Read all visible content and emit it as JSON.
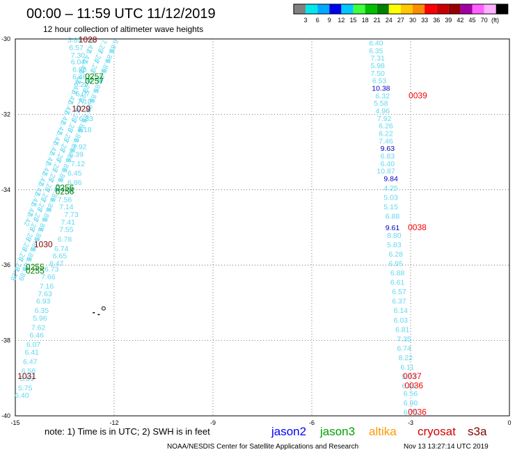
{
  "header": {
    "title": "00:00 – 11:59 UTC 11/12/2019",
    "subtitle": "12 hour collection of altimeter wave heights"
  },
  "footer": {
    "note": "note: 1) Time is in UTC; 2) SWH is in feet",
    "credit": "NOAA/NESDIS Center for Satellite Applications and Research",
    "timestamp": "Nov 13 13:27:14 UTC 2019"
  },
  "legend": {
    "unit": "(ft)",
    "colors": [
      "#808080",
      "#00e8e8",
      "#00a8ff",
      "#0000e8",
      "#00c8ff",
      "#40ff40",
      "#00c000",
      "#008000",
      "#ffff00",
      "#ffc800",
      "#ff8c00",
      "#ff0000",
      "#c80000",
      "#960000",
      "#a000a0",
      "#ff60ff",
      "#ffb0ff",
      "#000000"
    ],
    "labels": [
      "3",
      "6",
      "9",
      "12",
      "15",
      "18",
      "21",
      "24",
      "27",
      "30",
      "33",
      "36",
      "39",
      "42",
      "45",
      "70"
    ],
    "satellites": [
      {
        "name": "jason2",
        "color": "#0000ff"
      },
      {
        "name": "jason3",
        "color": "#00a000"
      },
      {
        "name": "altika",
        "color": "#ff9900"
      },
      {
        "name": "cryosat",
        "color": "#d40000"
      },
      {
        "name": "s3a",
        "color": "#800000"
      }
    ]
  },
  "chart_data": {
    "type": "scatter",
    "xlim": [
      -15,
      0
    ],
    "ylim": [
      -40,
      -30
    ],
    "x_ticks": [
      "-15",
      "-12",
      "-9",
      "-6",
      "-3",
      "0"
    ],
    "y_ticks": [
      "-30",
      "-32",
      "-34",
      "-36",
      "-38",
      "-40"
    ],
    "grid": true,
    "coastline_points": [
      [
        -12.32,
        -37.15
      ],
      [
        -12.65,
        -37.25
      ],
      [
        -12.5,
        -37.3
      ]
    ],
    "series": [
      {
        "name": "track-west-1",
        "color": "#60d8f0",
        "points": [
          {
            "x": -13.2,
            "y": -30.02,
            "v": "5.89"
          },
          {
            "x": -13.15,
            "y": -30.22,
            "v": "6.57"
          },
          {
            "x": -13.1,
            "y": -30.42,
            "v": "7.30"
          },
          {
            "x": -13.1,
            "y": -30.6,
            "v": "6.04"
          },
          {
            "x": -13.05,
            "y": -30.8,
            "v": "6.86"
          },
          {
            "x": -13.05,
            "y": -31.0,
            "v": "6.46"
          },
          {
            "x": -13.0,
            "y": -31.2,
            "v": "6.29"
          },
          {
            "x": -12.95,
            "y": -31.45,
            "v": "6.07"
          },
          {
            "x": -12.9,
            "y": -31.65,
            "v": "7.10"
          },
          {
            "x": -12.85,
            "y": -32.1,
            "v": "6.33"
          },
          {
            "x": -12.9,
            "y": -32.4,
            "v": "7.18"
          },
          {
            "x": -13.05,
            "y": -32.85,
            "v": "7.92"
          },
          {
            "x": -13.15,
            "y": -33.05,
            "v": "6.39"
          },
          {
            "x": -13.1,
            "y": -33.3,
            "v": "7.12"
          },
          {
            "x": -13.2,
            "y": -33.55,
            "v": "6.45"
          },
          {
            "x": -13.2,
            "y": -33.8,
            "v": "6.86"
          },
          {
            "x": -13.4,
            "y": -34.0,
            "v": "7.12"
          },
          {
            "x": -13.5,
            "y": -34.25,
            "v": "7.56"
          },
          {
            "x": -13.45,
            "y": -34.45,
            "v": "7.14"
          },
          {
            "x": -13.3,
            "y": -34.65,
            "v": "7.73"
          },
          {
            "x": -13.4,
            "y": -34.85,
            "v": "7.41"
          },
          {
            "x": -13.45,
            "y": -35.05,
            "v": "7.55"
          },
          {
            "x": -13.5,
            "y": -35.3,
            "v": "6.78"
          },
          {
            "x": -13.6,
            "y": -35.55,
            "v": "6.74"
          },
          {
            "x": -13.65,
            "y": -35.75,
            "v": "6.65"
          },
          {
            "x": -13.75,
            "y": -35.95,
            "v": "8.47"
          },
          {
            "x": -13.9,
            "y": -36.1,
            "v": "6.73"
          },
          {
            "x": -14.0,
            "y": -36.3,
            "v": "7.66"
          },
          {
            "x": -14.05,
            "y": -36.55,
            "v": "7.16"
          },
          {
            "x": -14.1,
            "y": -36.75,
            "v": "7.63"
          },
          {
            "x": -14.15,
            "y": -36.95,
            "v": "6.93"
          },
          {
            "x": -14.2,
            "y": -37.2,
            "v": "6.35"
          },
          {
            "x": -14.25,
            "y": -37.4,
            "v": "5.96"
          },
          {
            "x": -14.3,
            "y": -37.65,
            "v": "7.62"
          },
          {
            "x": -14.35,
            "y": -37.85,
            "v": "6.46"
          },
          {
            "x": -14.45,
            "y": -38.1,
            "v": "6.07"
          },
          {
            "x": -14.5,
            "y": -38.3,
            "v": "6.41"
          },
          {
            "x": -14.55,
            "y": -38.55,
            "v": "6.47"
          },
          {
            "x": -14.6,
            "y": -38.8,
            "v": "6.58"
          },
          {
            "x": -14.65,
            "y": -39.0,
            "v": "5.89"
          },
          {
            "x": -14.7,
            "y": -39.25,
            "v": "5.75"
          },
          {
            "x": -14.8,
            "y": -39.45,
            "v": "6.40"
          }
        ]
      },
      {
        "name": "track-east",
        "color": "#60d8f0",
        "points": [
          {
            "x": -4.05,
            "y": -30.1,
            "v": "6.40"
          },
          {
            "x": -4.05,
            "y": -30.3,
            "v": "6.35"
          },
          {
            "x": -4.0,
            "y": -30.5,
            "v": "7.31"
          },
          {
            "x": -4.0,
            "y": -30.7,
            "v": "5.98"
          },
          {
            "x": -4.0,
            "y": -30.9,
            "v": "7.50"
          },
          {
            "x": -3.95,
            "y": -31.1,
            "v": "6.53"
          },
          {
            "x": -3.9,
            "y": -31.3,
            "v": "10.38",
            "c": "#0000c0"
          },
          {
            "x": -3.85,
            "y": -31.5,
            "v": "6.32"
          },
          {
            "x": -3.9,
            "y": -31.7,
            "v": "5.58"
          },
          {
            "x": -3.85,
            "y": -31.9,
            "v": "4.96"
          },
          {
            "x": -3.8,
            "y": -32.1,
            "v": "7.92"
          },
          {
            "x": -3.75,
            "y": -32.3,
            "v": "6.26"
          },
          {
            "x": -3.75,
            "y": -32.5,
            "v": "6.22"
          },
          {
            "x": -3.75,
            "y": -32.7,
            "v": "7.46"
          },
          {
            "x": -3.7,
            "y": -32.9,
            "v": "9.63",
            "c": "#0000c0"
          },
          {
            "x": -3.7,
            "y": -33.1,
            "v": "6.83"
          },
          {
            "x": -3.7,
            "y": -33.3,
            "v": "6.40"
          },
          {
            "x": -3.75,
            "y": -33.5,
            "v": "10.87",
            "c": "#60d8f0"
          },
          {
            "x": -3.6,
            "y": -33.7,
            "v": "9.84",
            "c": "#0000c0"
          },
          {
            "x": -3.6,
            "y": -33.95,
            "v": "4.25"
          },
          {
            "x": -3.6,
            "y": -34.2,
            "v": "5.03"
          },
          {
            "x": -3.6,
            "y": -34.45,
            "v": "5.15"
          },
          {
            "x": -3.55,
            "y": -34.7,
            "v": "6.88"
          },
          {
            "x": -3.55,
            "y": -35.0,
            "v": "9.61",
            "c": "#0000c0"
          },
          {
            "x": -3.5,
            "y": -35.2,
            "v": "8.80"
          },
          {
            "x": -3.5,
            "y": -35.45,
            "v": "5.83"
          },
          {
            "x": -3.45,
            "y": -35.7,
            "v": "6.28"
          },
          {
            "x": -3.45,
            "y": -35.95,
            "v": "6.95"
          },
          {
            "x": -3.4,
            "y": -36.2,
            "v": "6.88"
          },
          {
            "x": -3.4,
            "y": -36.45,
            "v": "6.61"
          },
          {
            "x": -3.35,
            "y": -36.7,
            "v": "6.57"
          },
          {
            "x": -3.35,
            "y": -36.95,
            "v": "6.37"
          },
          {
            "x": -3.3,
            "y": -37.2,
            "v": "6.14"
          },
          {
            "x": -3.3,
            "y": -37.45,
            "v": "6.03"
          },
          {
            "x": -3.25,
            "y": -37.7,
            "v": "6.81"
          },
          {
            "x": -3.2,
            "y": -37.95,
            "v": "7.35"
          },
          {
            "x": -3.2,
            "y": -38.2,
            "v": "6.74"
          },
          {
            "x": -3.15,
            "y": -38.45,
            "v": "8.22"
          },
          {
            "x": -3.1,
            "y": -38.7,
            "v": "6.11"
          },
          {
            "x": -3.05,
            "y": -38.95,
            "v": "5.93"
          },
          {
            "x": -3.05,
            "y": -39.2,
            "v": "6.39"
          },
          {
            "x": -3.0,
            "y": -39.4,
            "v": "6.56"
          },
          {
            "x": -3.0,
            "y": -39.65,
            "v": "6.90"
          },
          {
            "x": -3.0,
            "y": -39.9,
            "v": "6.75"
          }
        ]
      }
    ],
    "dense_bands": [
      {
        "from": [
          -12.0,
          -30.0
        ],
        "to": [
          -14.75,
          -36.05
        ],
        "color": "#60d8f0",
        "sample_text": "6.89"
      },
      {
        "from": [
          -12.35,
          -30.0
        ],
        "to": [
          -15.0,
          -36.05
        ],
        "color": "#60d8f0",
        "sample_text": "7.28"
      },
      {
        "from": [
          -12.7,
          -30.0
        ],
        "to": [
          -14.6,
          -34.6
        ],
        "color": "#60d8f0",
        "sample_text": "6.42"
      }
    ],
    "time_labels": [
      {
        "x": -12.8,
        "y": -30.02,
        "v": "1028",
        "c": "#800000"
      },
      {
        "x": -12.6,
        "y": -31.0,
        "v": "0257",
        "c": "#008000"
      },
      {
        "x": -12.6,
        "y": -31.12,
        "v": "0257",
        "c": "#008000"
      },
      {
        "x": -13.0,
        "y": -31.85,
        "v": "1029",
        "c": "#800000"
      },
      {
        "x": -13.5,
        "y": -33.95,
        "v": "0256",
        "c": "#008000"
      },
      {
        "x": -13.5,
        "y": -34.05,
        "v": "0256",
        "c": "#008000"
      },
      {
        "x": -14.15,
        "y": -35.45,
        "v": "1030",
        "c": "#800000"
      },
      {
        "x": -14.4,
        "y": -36.05,
        "v": "0255",
        "c": "#008000"
      },
      {
        "x": -14.4,
        "y": -36.15,
        "v": "0255",
        "c": "#008000"
      },
      {
        "x": -14.65,
        "y": -38.95,
        "v": "1031",
        "c": "#800000"
      },
      {
        "x": -2.78,
        "y": -31.5,
        "v": "0039",
        "c": "#ff0000"
      },
      {
        "x": -2.8,
        "y": -35.0,
        "v": "0038",
        "c": "#ff0000"
      },
      {
        "x": -2.95,
        "y": -38.95,
        "v": "0037",
        "c": "#ff0000"
      },
      {
        "x": -2.9,
        "y": -39.2,
        "v": "0036",
        "c": "#ff0000"
      },
      {
        "x": -2.8,
        "y": -39.9,
        "v": "0036",
        "c": "#ff0000"
      }
    ]
  }
}
